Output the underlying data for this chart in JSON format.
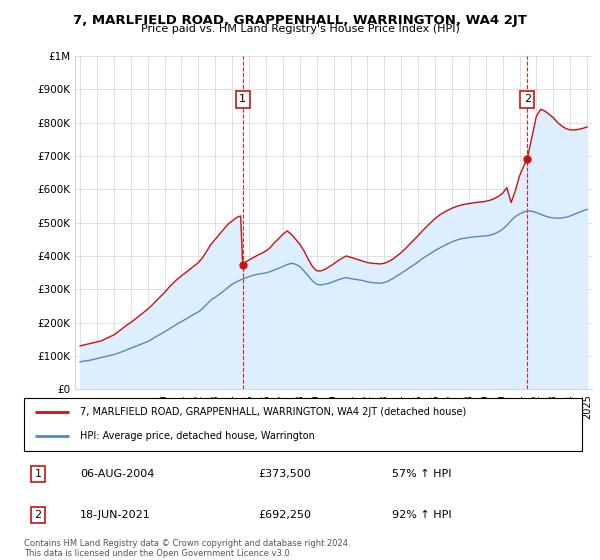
{
  "title": "7, MARLFIELD ROAD, GRAPPENHALL, WARRINGTON, WA4 2JT",
  "subtitle": "Price paid vs. HM Land Registry's House Price Index (HPI)",
  "legend_line1": "7, MARLFIELD ROAD, GRAPPENHALL, WARRINGTON, WA4 2JT (detached house)",
  "legend_line2": "HPI: Average price, detached house, Warrington",
  "annotation1_label": "1",
  "annotation1_date": "06-AUG-2004",
  "annotation1_price": "£373,500",
  "annotation1_hpi": "57% ↑ HPI",
  "annotation2_label": "2",
  "annotation2_date": "18-JUN-2021",
  "annotation2_price": "£692,250",
  "annotation2_hpi": "92% ↑ HPI",
  "footer": "Contains HM Land Registry data © Crown copyright and database right 2024.\nThis data is licensed under the Open Government Licence v3.0.",
  "red_color": "#cc1111",
  "blue_color": "#5588bb",
  "fill_color": "#ddeeff",
  "sale1_x": 2004.62,
  "sale1_y": 373500,
  "sale2_x": 2021.46,
  "sale2_y": 692250,
  "ylim": [
    0,
    1000000
  ],
  "xlim_left": 1994.7,
  "xlim_right": 2025.3,
  "hpi_x": [
    1995.0,
    1995.083,
    1995.167,
    1995.25,
    1995.333,
    1995.417,
    1995.5,
    1995.583,
    1995.667,
    1995.75,
    1995.833,
    1995.917,
    1996.0,
    1996.083,
    1996.167,
    1996.25,
    1996.333,
    1996.417,
    1996.5,
    1996.583,
    1996.667,
    1996.75,
    1996.833,
    1996.917,
    1997.0,
    1997.25,
    1997.5,
    1997.75,
    1998.0,
    1998.25,
    1998.5,
    1998.75,
    1999.0,
    1999.25,
    1999.5,
    1999.75,
    2000.0,
    2000.25,
    2000.5,
    2000.75,
    2001.0,
    2001.25,
    2001.5,
    2001.75,
    2002.0,
    2002.25,
    2002.5,
    2002.75,
    2003.0,
    2003.25,
    2003.5,
    2003.75,
    2004.0,
    2004.25,
    2004.5,
    2004.75,
    2005.0,
    2005.25,
    2005.5,
    2005.75,
    2006.0,
    2006.25,
    2006.5,
    2006.75,
    2007.0,
    2007.25,
    2007.5,
    2007.75,
    2008.0,
    2008.25,
    2008.5,
    2008.75,
    2009.0,
    2009.25,
    2009.5,
    2009.75,
    2010.0,
    2010.25,
    2010.5,
    2010.75,
    2011.0,
    2011.25,
    2011.5,
    2011.75,
    2012.0,
    2012.25,
    2012.5,
    2012.75,
    2013.0,
    2013.25,
    2013.5,
    2013.75,
    2014.0,
    2014.25,
    2014.5,
    2014.75,
    2015.0,
    2015.25,
    2015.5,
    2015.75,
    2016.0,
    2016.25,
    2016.5,
    2016.75,
    2017.0,
    2017.25,
    2017.5,
    2017.75,
    2018.0,
    2018.25,
    2018.5,
    2018.75,
    2019.0,
    2019.25,
    2019.5,
    2019.75,
    2020.0,
    2020.25,
    2020.5,
    2020.75,
    2021.0,
    2021.25,
    2021.5,
    2021.75,
    2022.0,
    2022.25,
    2022.5,
    2022.75,
    2023.0,
    2023.25,
    2023.5,
    2023.75,
    2024.0,
    2024.25,
    2024.5,
    2024.75,
    2025.0
  ],
  "hpi_y": [
    82000,
    83000,
    84000,
    84500,
    85000,
    85500,
    86000,
    87000,
    88000,
    89000,
    90000,
    91000,
    92000,
    93000,
    94000,
    95000,
    96000,
    97000,
    98000,
    99000,
    100000,
    101000,
    102000,
    103000,
    104000,
    108000,
    113000,
    118000,
    123000,
    128000,
    133000,
    138000,
    143000,
    150000,
    158000,
    165000,
    172000,
    180000,
    188000,
    196000,
    203000,
    210000,
    218000,
    225000,
    232000,
    242000,
    255000,
    268000,
    276000,
    285000,
    295000,
    305000,
    315000,
    322000,
    328000,
    333000,
    338000,
    342000,
    345000,
    347000,
    349000,
    353000,
    358000,
    363000,
    368000,
    374000,
    378000,
    375000,
    368000,
    355000,
    340000,
    325000,
    315000,
    313000,
    315000,
    318000,
    323000,
    328000,
    332000,
    335000,
    332000,
    330000,
    328000,
    326000,
    322000,
    320000,
    319000,
    318000,
    320000,
    325000,
    332000,
    340000,
    348000,
    356000,
    365000,
    373000,
    382000,
    392000,
    400000,
    408000,
    416000,
    423000,
    430000,
    436000,
    442000,
    447000,
    451000,
    453000,
    455000,
    457000,
    458000,
    459000,
    460000,
    462000,
    466000,
    472000,
    480000,
    492000,
    506000,
    518000,
    526000,
    532000,
    535000,
    534000,
    530000,
    525000,
    520000,
    516000,
    514000,
    513000,
    514000,
    516000,
    520000,
    525000,
    530000,
    535000,
    540000
  ],
  "red_x": [
    1995.0,
    1995.083,
    1995.167,
    1995.25,
    1995.333,
    1995.417,
    1995.5,
    1995.583,
    1995.667,
    1995.75,
    1995.833,
    1995.917,
    1996.0,
    1996.083,
    1996.167,
    1996.25,
    1996.333,
    1996.417,
    1996.5,
    1996.583,
    1996.667,
    1996.75,
    1996.833,
    1996.917,
    1997.0,
    1997.25,
    1997.5,
    1997.75,
    1998.0,
    1998.25,
    1998.5,
    1998.75,
    1999.0,
    1999.25,
    1999.5,
    1999.75,
    2000.0,
    2000.25,
    2000.5,
    2000.75,
    2001.0,
    2001.25,
    2001.5,
    2001.75,
    2002.0,
    2002.25,
    2002.5,
    2002.75,
    2003.0,
    2003.25,
    2003.5,
    2003.75,
    2004.0,
    2004.25,
    2004.5,
    2004.62,
    2004.75,
    2005.0,
    2005.25,
    2005.5,
    2005.75,
    2006.0,
    2006.25,
    2006.5,
    2006.75,
    2007.0,
    2007.25,
    2007.5,
    2007.75,
    2008.0,
    2008.25,
    2008.5,
    2008.75,
    2009.0,
    2009.25,
    2009.5,
    2009.75,
    2010.0,
    2010.25,
    2010.5,
    2010.75,
    2011.0,
    2011.25,
    2011.5,
    2011.75,
    2012.0,
    2012.25,
    2012.5,
    2012.75,
    2013.0,
    2013.25,
    2013.5,
    2013.75,
    2014.0,
    2014.25,
    2014.5,
    2014.75,
    2015.0,
    2015.25,
    2015.5,
    2015.75,
    2016.0,
    2016.25,
    2016.5,
    2016.75,
    2017.0,
    2017.25,
    2017.5,
    2017.75,
    2018.0,
    2018.25,
    2018.5,
    2018.75,
    2019.0,
    2019.25,
    2019.5,
    2019.75,
    2020.0,
    2020.25,
    2020.5,
    2020.75,
    2021.0,
    2021.25,
    2021.46,
    2021.75,
    2022.0,
    2022.25,
    2022.5,
    2022.75,
    2023.0,
    2023.25,
    2023.5,
    2023.75,
    2024.0,
    2024.25,
    2024.5,
    2024.75,
    2025.0
  ],
  "red_y": [
    130000,
    131000,
    132000,
    133000,
    134000,
    135000,
    136000,
    137000,
    138000,
    139000,
    140000,
    141000,
    142000,
    143000,
    144000,
    145000,
    147000,
    149000,
    151000,
    153000,
    155000,
    157000,
    159000,
    161000,
    163000,
    172000,
    182000,
    192000,
    200000,
    210000,
    220000,
    230000,
    240000,
    252000,
    265000,
    278000,
    290000,
    305000,
    318000,
    330000,
    340000,
    350000,
    360000,
    370000,
    380000,
    395000,
    415000,
    435000,
    450000,
    465000,
    480000,
    495000,
    505000,
    515000,
    520000,
    373500,
    380000,
    388000,
    395000,
    402000,
    408000,
    415000,
    425000,
    440000,
    452000,
    465000,
    475000,
    465000,
    450000,
    435000,
    415000,
    390000,
    368000,
    355000,
    355000,
    360000,
    368000,
    376000,
    385000,
    393000,
    400000,
    396000,
    392000,
    388000,
    384000,
    380000,
    378000,
    377000,
    376000,
    378000,
    383000,
    390000,
    400000,
    410000,
    422000,
    435000,
    448000,
    461000,
    475000,
    488000,
    500000,
    512000,
    522000,
    530000,
    537000,
    543000,
    548000,
    552000,
    555000,
    557000,
    559000,
    561000,
    562000,
    564000,
    567000,
    572000,
    579000,
    588000,
    605000,
    560000,
    595000,
    640000,
    670000,
    692250,
    760000,
    820000,
    840000,
    835000,
    825000,
    815000,
    800000,
    790000,
    782000,
    778000,
    778000,
    780000,
    783000,
    787000
  ]
}
